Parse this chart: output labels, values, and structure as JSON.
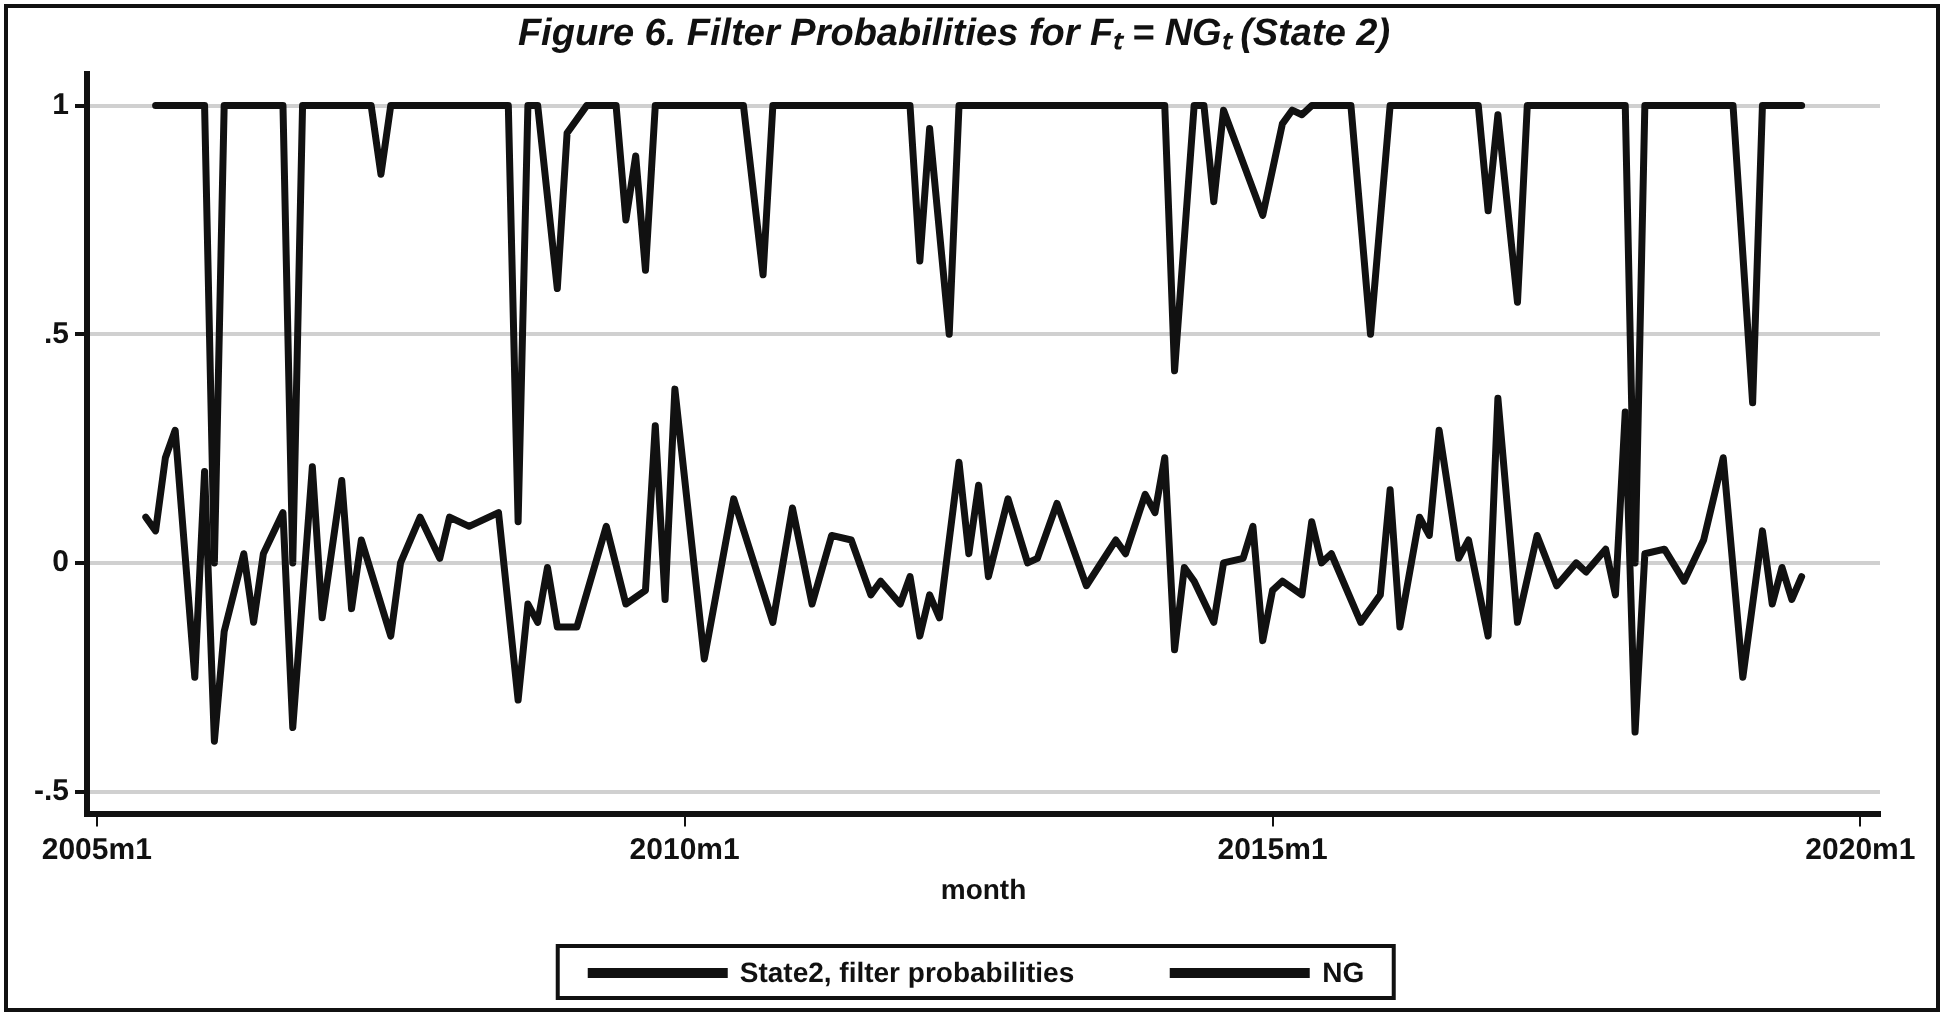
{
  "chart_data": {
    "type": "line",
    "title": "Figure 6. Filter Probabilities for Fₜ = NGₜ (State 2)",
    "xlabel": "month",
    "xlim": [
      "2004-12",
      "2020-03"
    ],
    "xticks": [
      {
        "value": "2005-01",
        "label": "2005m1"
      },
      {
        "value": "2010-01",
        "label": "2010m1"
      },
      {
        "value": "2015-01",
        "label": "2015m1"
      },
      {
        "value": "2020-01",
        "label": "2020m1"
      }
    ],
    "ylim": [
      -0.55,
      1.07
    ],
    "yticks": [
      {
        "value": -0.5,
        "label": "-.5"
      },
      0,
      {
        "value": 0.5,
        "label": ".5"
      },
      1
    ],
    "grid": "y",
    "legend": "bottom",
    "marker": "none",
    "line_style": "solid",
    "series": [
      {
        "name": "State2, filter probabilities",
        "color": "#111111",
        "x": [
          "2005-07",
          "2005-12",
          "2006-01",
          "2006-02",
          "2006-08",
          "2006-09",
          "2006-10",
          "2007-05",
          "2007-06",
          "2007-07",
          "2008-07",
          "2008-08",
          "2008-09",
          "2008-10",
          "2008-12",
          "2009-01",
          "2009-03",
          "2009-06",
          "2009-07",
          "2009-08",
          "2009-09",
          "2009-10",
          "2010-07",
          "2010-09",
          "2010-10",
          "2011-12",
          "2012-01",
          "2012-02",
          "2012-04",
          "2012-05",
          "2014-02",
          "2014-03",
          "2014-05",
          "2014-06",
          "2014-07",
          "2014-08",
          "2014-12",
          "2015-02",
          "2015-03",
          "2015-04",
          "2015-05",
          "2015-09",
          "2015-11",
          "2016-01",
          "2016-10",
          "2016-11",
          "2016-12",
          "2017-02",
          "2017-03",
          "2018-01",
          "2018-02",
          "2018-03",
          "2018-12",
          "2019-02",
          "2019-03",
          "2019-07"
        ],
        "values": [
          1,
          1,
          0,
          1,
          1,
          0,
          1,
          1,
          0.85,
          1,
          1,
          0.09,
          1,
          1,
          0.6,
          0.94,
          1,
          1,
          0.75,
          0.89,
          0.64,
          1,
          1,
          0.63,
          1,
          1,
          0.66,
          0.95,
          0.5,
          1,
          1,
          0.42,
          1,
          1,
          0.79,
          0.99,
          0.76,
          0.96,
          0.99,
          0.98,
          1,
          1,
          0.5,
          1,
          1,
          0.77,
          0.98,
          0.57,
          1,
          1,
          0,
          1,
          1,
          0.35,
          1,
          1
        ]
      },
      {
        "name": "NG",
        "color": "#111111",
        "x": [
          "2005-06",
          "2005-07",
          "2005-08",
          "2005-09",
          "2005-11",
          "2005-12",
          "2006-01",
          "2006-02",
          "2006-04",
          "2006-05",
          "2006-06",
          "2006-08",
          "2006-09",
          "2006-11",
          "2006-12",
          "2007-02",
          "2007-03",
          "2007-04",
          "2007-07",
          "2007-08",
          "2007-10",
          "2007-12",
          "2008-01",
          "2008-03",
          "2008-06",
          "2008-08",
          "2008-09",
          "2008-10",
          "2008-11",
          "2008-12",
          "2009-02",
          "2009-05",
          "2009-07",
          "2009-09",
          "2009-10",
          "2009-11",
          "2009-12",
          "2010-03",
          "2010-06",
          "2010-10",
          "2010-12",
          "2011-02",
          "2011-04",
          "2011-06",
          "2011-08",
          "2011-09",
          "2011-11",
          "2011-12",
          "2012-01",
          "2012-02",
          "2012-03",
          "2012-05",
          "2012-06",
          "2012-07",
          "2012-08",
          "2012-10",
          "2012-12",
          "2013-01",
          "2013-03",
          "2013-06",
          "2013-09",
          "2013-10",
          "2013-12",
          "2014-01",
          "2014-02",
          "2014-03",
          "2014-04",
          "2014-05",
          "2014-07",
          "2014-08",
          "2014-10",
          "2014-11",
          "2014-12",
          "2015-01",
          "2015-02",
          "2015-04",
          "2015-05",
          "2015-06",
          "2015-07",
          "2015-10",
          "2015-12",
          "2016-01",
          "2016-02",
          "2016-04",
          "2016-05",
          "2016-06",
          "2016-08",
          "2016-09",
          "2016-11",
          "2016-12",
          "2017-02",
          "2017-04",
          "2017-06",
          "2017-08",
          "2017-09",
          "2017-11",
          "2017-12",
          "2018-01",
          "2018-02",
          "2018-03",
          "2018-05",
          "2018-07",
          "2018-09",
          "2018-11",
          "2019-01",
          "2019-03",
          "2019-04",
          "2019-05",
          "2019-06",
          "2019-07"
        ],
        "values": [
          0.1,
          0.07,
          0.23,
          0.29,
          -0.25,
          0.2,
          -0.39,
          -0.15,
          0.02,
          -0.13,
          0.02,
          0.11,
          -0.36,
          0.21,
          -0.12,
          0.18,
          -0.1,
          0.05,
          -0.16,
          0,
          0.1,
          0.01,
          0.1,
          0.08,
          0.11,
          -0.3,
          -0.09,
          -0.13,
          -0.01,
          -0.14,
          -0.14,
          0.08,
          -0.09,
          -0.06,
          0.3,
          -0.08,
          0.38,
          -0.21,
          0.14,
          -0.13,
          0.12,
          -0.09,
          0.06,
          0.05,
          -0.07,
          -0.04,
          -0.09,
          -0.03,
          -0.16,
          -0.07,
          -0.12,
          0.22,
          0.02,
          0.17,
          -0.03,
          0.14,
          0,
          0.01,
          0.13,
          -0.05,
          0.05,
          0.02,
          0.15,
          0.11,
          0.23,
          -0.19,
          -0.01,
          -0.04,
          -0.13,
          0,
          0.01,
          0.08,
          -0.17,
          -0.06,
          -0.04,
          -0.07,
          0.09,
          0,
          0.02,
          -0.13,
          -0.07,
          0.16,
          -0.14,
          0.1,
          0.06,
          0.29,
          0.01,
          0.05,
          -0.16,
          0.36,
          -0.13,
          0.06,
          -0.05,
          0,
          -0.02,
          0.03,
          -0.07,
          0.33,
          -0.37,
          0.02,
          0.03,
          -0.04,
          0.05,
          0.23,
          -0.25,
          0.07,
          -0.09,
          -0.01,
          -0.08,
          -0.03
        ]
      }
    ]
  }
}
